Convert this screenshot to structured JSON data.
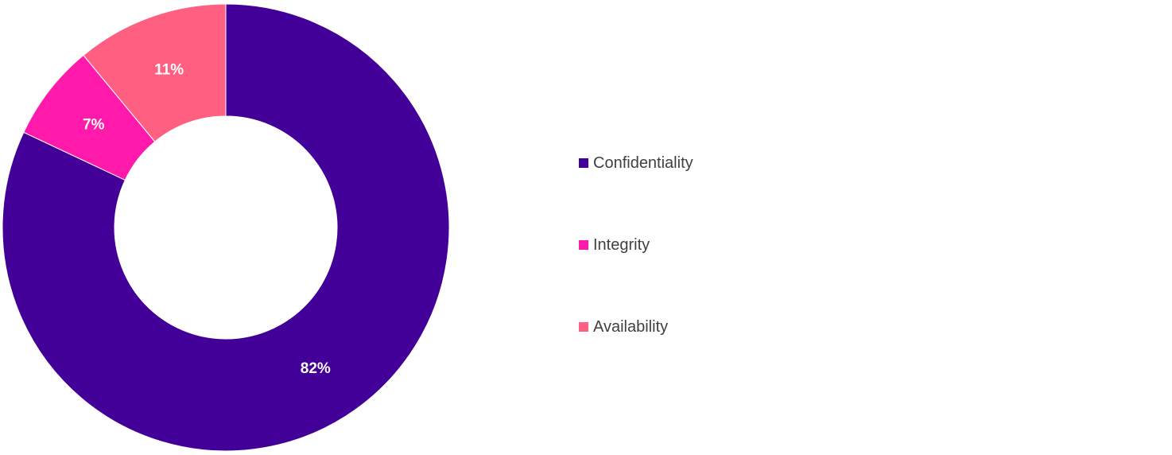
{
  "chart_data": {
    "type": "pie",
    "variant": "donut",
    "categories": [
      "Confidentiality",
      "Integrity",
      "Availability"
    ],
    "values": [
      82,
      7,
      11
    ],
    "unit": "%",
    "data_labels": [
      "82%",
      "7%",
      "11%"
    ],
    "colors": [
      "#430098",
      "#FF1AAB",
      "#FF6082"
    ],
    "label_color": "#FFFFFF",
    "legend_text_color": "#404040",
    "legend_position": "right",
    "start_angle_deg": 0,
    "direction": "clockwise"
  }
}
